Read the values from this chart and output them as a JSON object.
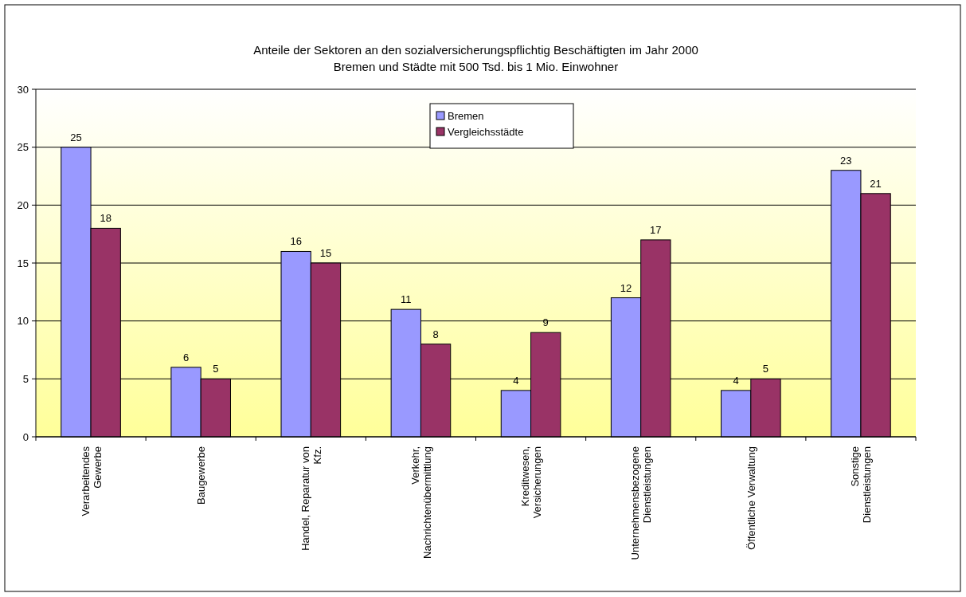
{
  "chart_data": {
    "type": "bar",
    "title": "Anteile der Sektoren an den sozialversicherungspflichtig Beschäftigten im Jahr 2000",
    "subtitle": "Bremen und Städte mit 500 Tsd. bis 1 Mio. Einwohner",
    "categories": [
      "Verarbeitendes\nGewerbe",
      "Baugewerbe",
      "Handel, Reparatur von\nKfz.",
      "Verkehr,\nNachrichtenübermittlung",
      "Kreditwesen,\nVersicherungen",
      "Unternehmensbezogene\nDienstleistungen",
      "Öffentliche Verwaltung",
      "Sonstige\nDienstleistungen"
    ],
    "series": [
      {
        "name": "Bremen",
        "color": "#9999ff",
        "values": [
          25,
          6,
          16,
          11,
          4,
          12,
          4,
          23
        ]
      },
      {
        "name": "Vergleichsstädte",
        "color": "#993366",
        "values": [
          18,
          5,
          15,
          8,
          9,
          17,
          5,
          21
        ]
      }
    ],
    "ylim": [
      0,
      30
    ],
    "yticks": [
      0,
      5,
      10,
      15,
      20,
      25,
      30
    ],
    "grid": "y",
    "legend": "top",
    "data_labels": true
  }
}
